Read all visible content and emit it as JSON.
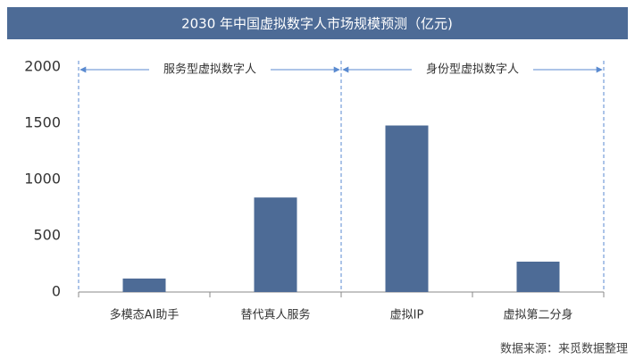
{
  "chart_data": {
    "type": "bar",
    "title": "2030 年中国虚拟数字人市场规模预测（亿元)",
    "categories": [
      "多模态AI助手",
      "替代真人服务",
      "虚拟IP",
      "虚拟第二分身"
    ],
    "values": [
      120,
      840,
      1480,
      270
    ],
    "color": "#4d6b96",
    "ylim": [
      0,
      2000
    ],
    "yticks": [
      0,
      500,
      1000,
      1500,
      2000
    ],
    "grid": false,
    "annotations": [
      {
        "text": "服务型虚拟数字人"
      },
      {
        "text": "身份型虚拟数字人"
      }
    ],
    "source": "数据来源：来觅数据整理"
  }
}
